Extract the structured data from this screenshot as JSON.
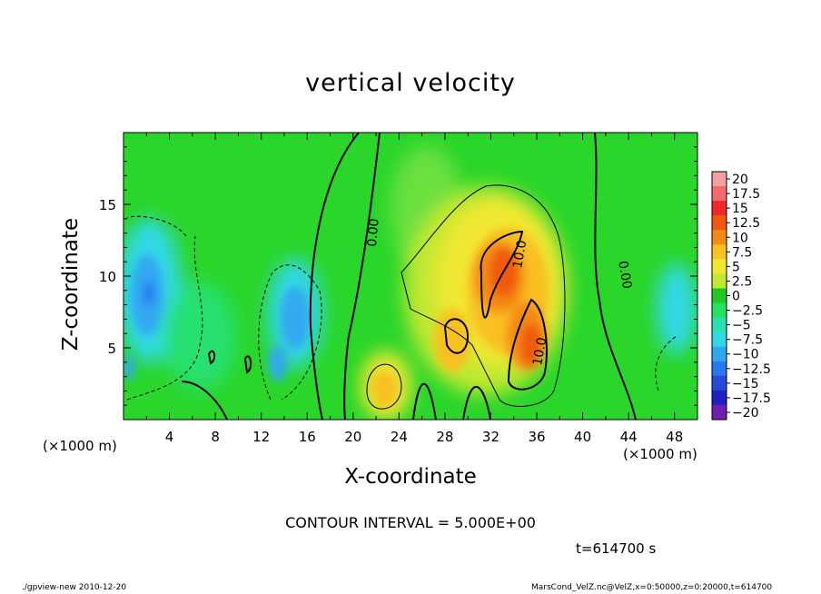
{
  "chart_data": {
    "type": "heatmap",
    "title": "vertical velocity",
    "xlabel": "X-coordinate",
    "ylabel": "Z-coordinate",
    "x_unit": "(×1000 m)",
    "x_ticks": [
      4,
      8,
      12,
      16,
      20,
      24,
      28,
      32,
      36,
      40,
      44,
      48
    ],
    "y_ticks": [
      5,
      10,
      15
    ],
    "xlim": [
      0,
      50
    ],
    "ylim": [
      0,
      20
    ],
    "colorbar": {
      "ticks": [
        "20",
        "17.5",
        "15",
        "12.5",
        "10",
        "7.5",
        "5",
        "2.5",
        "0",
        "−2.5",
        "−5",
        "−7.5",
        "−10",
        "−12.5",
        "−15",
        "−17.5",
        "−20"
      ],
      "colors": [
        "#f4a0a0",
        "#f46a6a",
        "#f22828",
        "#f05a10",
        "#f48a14",
        "#f8c020",
        "#f2e830",
        "#c2e830",
        "#22c822",
        "#28e060",
        "#28e0b0",
        "#30d8e8",
        "#30a8f0",
        "#2878f0",
        "#2848d8",
        "#2020c0",
        "#7020b0"
      ]
    },
    "contour_labels": [
      "0.00",
      "10.0",
      "10.0",
      "0.00"
    ],
    "contour_interval_text": "CONTOUR INTERVAL = 5.000E+00",
    "time_text": "t=614700 s"
  },
  "footer": {
    "left": "./gpview-new   2010-12-20",
    "right": "MarsCond_VelZ.nc@VelZ,x=0:50000,z=0:20000,t=614700"
  }
}
